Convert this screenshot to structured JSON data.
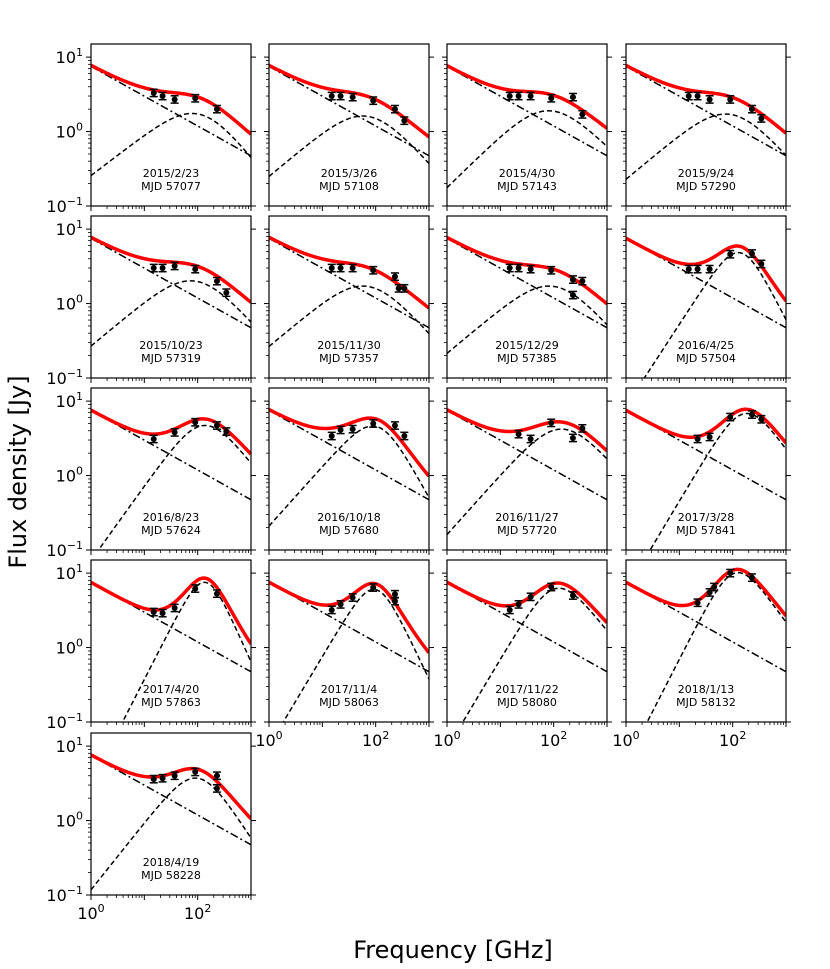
{
  "figure": {
    "xlabel": "Frequency [GHz]",
    "ylabel": "Flux density [Jy]"
  },
  "colors": {
    "model": "#ff0000",
    "component": "#000000",
    "points": "#000000"
  },
  "axis": {
    "xlim": [
      1,
      1000
    ],
    "ylim": [
      0.1,
      15
    ],
    "y_ticks": [
      {
        "value": 10,
        "base": "10",
        "exp": "1"
      },
      {
        "value": 1,
        "base": "10",
        "exp": "0"
      },
      {
        "value": 0.1,
        "base": "10",
        "exp": "−1"
      }
    ],
    "x_ticks": [
      {
        "value": 1,
        "base": "10",
        "exp": "0"
      },
      {
        "value": 100,
        "base": "10",
        "exp": "2"
      }
    ]
  },
  "chart_data": [
    {
      "type": "line",
      "date": "2015/2/23",
      "mjd": "MJD 57077",
      "model": {
        "A": 7.5,
        "alpha": -0.4,
        "S_peak": 1.7,
        "nu_peak": 110,
        "alpha_thick": 0.55,
        "alpha_thin": -0.9
      },
      "points": [
        {
          "x": 15,
          "y": 3.3
        },
        {
          "x": 22,
          "y": 3.0
        },
        {
          "x": 37,
          "y": 2.7
        },
        {
          "x": 90,
          "y": 2.8
        },
        {
          "x": 230,
          "y": 2.0
        }
      ]
    },
    {
      "type": "line",
      "date": "2015/3/26",
      "mjd": "MJD 57108",
      "model": {
        "A": 7.5,
        "alpha": -0.4,
        "S_peak": 1.6,
        "nu_peak": 70,
        "alpha_thick": 0.6,
        "alpha_thin": -0.8
      },
      "points": [
        {
          "x": 15,
          "y": 3.0
        },
        {
          "x": 22,
          "y": 3.0
        },
        {
          "x": 37,
          "y": 2.9
        },
        {
          "x": 90,
          "y": 2.6
        },
        {
          "x": 230,
          "y": 2.0
        },
        {
          "x": 345,
          "y": 1.4
        }
      ]
    },
    {
      "type": "line",
      "date": "2015/4/30",
      "mjd": "MJD 57143",
      "model": {
        "A": 7.5,
        "alpha": -0.4,
        "S_peak": 1.9,
        "nu_peak": 80,
        "alpha_thick": 0.7,
        "alpha_thin": -0.7
      },
      "points": [
        {
          "x": 15,
          "y": 3.0
        },
        {
          "x": 22,
          "y": 3.0
        },
        {
          "x": 37,
          "y": 3.0
        },
        {
          "x": 90,
          "y": 2.8
        },
        {
          "x": 230,
          "y": 2.9
        },
        {
          "x": 345,
          "y": 1.7
        }
      ]
    },
    {
      "type": "line",
      "date": "2015/9/24",
      "mjd": "MJD 57290",
      "model": {
        "A": 7.5,
        "alpha": -0.4,
        "S_peak": 1.7,
        "nu_peak": 90,
        "alpha_thick": 0.6,
        "alpha_thin": -0.8
      },
      "points": [
        {
          "x": 15,
          "y": 3.0
        },
        {
          "x": 22,
          "y": 3.0
        },
        {
          "x": 37,
          "y": 2.7
        },
        {
          "x": 90,
          "y": 2.7
        },
        {
          "x": 230,
          "y": 2.0
        },
        {
          "x": 345,
          "y": 1.5
        }
      ]
    },
    {
      "type": "line",
      "date": "2015/10/23",
      "mjd": "MJD 57319",
      "model": {
        "A": 7.5,
        "alpha": -0.4,
        "S_peak": 2.0,
        "nu_peak": 90,
        "alpha_thick": 0.6,
        "alpha_thin": -0.8
      },
      "points": [
        {
          "x": 15,
          "y": 3.0
        },
        {
          "x": 22,
          "y": 3.0
        },
        {
          "x": 37,
          "y": 3.2
        },
        {
          "x": 90,
          "y": 2.9
        },
        {
          "x": 230,
          "y": 2.0
        },
        {
          "x": 345,
          "y": 1.4
        }
      ]
    },
    {
      "type": "line",
      "date": "2015/11/30",
      "mjd": "MJD 57357",
      "model": {
        "A": 7.5,
        "alpha": -0.4,
        "S_peak": 1.7,
        "nu_peak": 70,
        "alpha_thick": 0.6,
        "alpha_thin": -0.8
      },
      "points": [
        {
          "x": 15,
          "y": 3.0
        },
        {
          "x": 22,
          "y": 3.0
        },
        {
          "x": 37,
          "y": 3.0
        },
        {
          "x": 90,
          "y": 2.8
        },
        {
          "x": 230,
          "y": 2.3
        },
        {
          "x": 270,
          "y": 1.6
        },
        {
          "x": 345,
          "y": 1.6
        }
      ]
    },
    {
      "type": "line",
      "date": "2015/12/29",
      "mjd": "MJD 57385",
      "model": {
        "A": 7.5,
        "alpha": -0.4,
        "S_peak": 1.7,
        "nu_peak": 100,
        "alpha_thick": 0.6,
        "alpha_thin": -0.8
      },
      "points": [
        {
          "x": 15,
          "y": 3.0
        },
        {
          "x": 22,
          "y": 3.0
        },
        {
          "x": 37,
          "y": 2.9
        },
        {
          "x": 90,
          "y": 2.8
        },
        {
          "x": 230,
          "y": 2.1
        },
        {
          "x": 230,
          "y": 1.3
        },
        {
          "x": 345,
          "y": 2.0
        }
      ]
    },
    {
      "type": "line",
      "date": "2016/4/25",
      "mjd": "MJD 57504",
      "model": {
        "A": 7.5,
        "alpha": -0.4,
        "S_peak": 4.8,
        "nu_peak": 140,
        "alpha_thick": 1.1,
        "alpha_thin": -1.4
      },
      "points": [
        {
          "x": 15,
          "y": 2.9
        },
        {
          "x": 22,
          "y": 2.9
        },
        {
          "x": 37,
          "y": 2.9
        },
        {
          "x": 90,
          "y": 4.6
        },
        {
          "x": 230,
          "y": 4.7
        },
        {
          "x": 345,
          "y": 3.4
        }
      ]
    },
    {
      "type": "line",
      "date": "2016/8/23",
      "mjd": "MJD 57624",
      "model": {
        "A": 7.5,
        "alpha": -0.4,
        "S_peak": 4.7,
        "nu_peak": 130,
        "alpha_thick": 1.0,
        "alpha_thin": -0.9
      },
      "points": [
        {
          "x": 15,
          "y": 3.1
        },
        {
          "x": 37,
          "y": 3.8
        },
        {
          "x": 90,
          "y": 5.2
        },
        {
          "x": 230,
          "y": 4.7
        },
        {
          "x": 345,
          "y": 3.9
        }
      ]
    },
    {
      "type": "line",
      "date": "2016/10/18",
      "mjd": "MJD 57680",
      "model": {
        "A": 7.5,
        "alpha": -0.4,
        "S_peak": 4.5,
        "nu_peak": 110,
        "alpha_thick": 0.8,
        "alpha_thin": -1.3
      },
      "points": [
        {
          "x": 15,
          "y": 3.4
        },
        {
          "x": 22,
          "y": 4.1
        },
        {
          "x": 37,
          "y": 4.2
        },
        {
          "x": 90,
          "y": 5.0
        },
        {
          "x": 230,
          "y": 4.7
        },
        {
          "x": 345,
          "y": 3.4
        }
      ]
    },
    {
      "type": "line",
      "date": "2016/11/27",
      "mjd": "MJD 57720",
      "model": {
        "A": 7.5,
        "alpha": -0.4,
        "S_peak": 4.2,
        "nu_peak": 140,
        "alpha_thick": 0.8,
        "alpha_thin": -0.8
      },
      "points": [
        {
          "x": 22,
          "y": 3.6
        },
        {
          "x": 37,
          "y": 3.1
        },
        {
          "x": 90,
          "y": 5.1
        },
        {
          "x": 230,
          "y": 3.2
        },
        {
          "x": 345,
          "y": 4.3
        }
      ]
    },
    {
      "type": "line",
      "date": "2017/3/28",
      "mjd": "MJD 57841",
      "model": {
        "A": 7.5,
        "alpha": -0.4,
        "S_peak": 6.8,
        "nu_peak": 170,
        "alpha_thick": 1.2,
        "alpha_thin": -1.0
      },
      "points": [
        {
          "x": 22,
          "y": 3.1
        },
        {
          "x": 37,
          "y": 3.3
        },
        {
          "x": 90,
          "y": 6.1
        },
        {
          "x": 230,
          "y": 6.6
        },
        {
          "x": 345,
          "y": 5.7
        }
      ]
    },
    {
      "type": "line",
      "date": "2017/4/20",
      "mjd": "MJD 57863",
      "model": {
        "A": 7.5,
        "alpha": -0.4,
        "S_peak": 7.5,
        "nu_peak": 140,
        "alpha_thick": 1.4,
        "alpha_thin": -1.6
      },
      "points": [
        {
          "x": 15,
          "y": 3.0
        },
        {
          "x": 22,
          "y": 2.9
        },
        {
          "x": 37,
          "y": 3.4
        },
        {
          "x": 90,
          "y": 6.2
        },
        {
          "x": 230,
          "y": 5.3
        }
      ]
    },
    {
      "type": "line",
      "date": "2017/11/4",
      "mjd": "MJD 58063",
      "model": {
        "A": 7.5,
        "alpha": -0.4,
        "S_peak": 6.0,
        "nu_peak": 100,
        "alpha_thick": 1.2,
        "alpha_thin": -1.5
      },
      "points": [
        {
          "x": 15,
          "y": 3.2
        },
        {
          "x": 22,
          "y": 3.8
        },
        {
          "x": 37,
          "y": 4.7
        },
        {
          "x": 90,
          "y": 6.4
        },
        {
          "x": 230,
          "y": 5.2
        },
        {
          "x": 230,
          "y": 4.2
        }
      ]
    },
    {
      "type": "line",
      "date": "2017/11/22",
      "mjd": "MJD 58080",
      "model": {
        "A": 7.5,
        "alpha": -0.4,
        "S_peak": 6.2,
        "nu_peak": 110,
        "alpha_thick": 1.2,
        "alpha_thin": -0.9
      },
      "points": [
        {
          "x": 15,
          "y": 3.2
        },
        {
          "x": 22,
          "y": 3.8
        },
        {
          "x": 37,
          "y": 4.8
        },
        {
          "x": 90,
          "y": 6.5
        },
        {
          "x": 230,
          "y": 5.0
        }
      ]
    },
    {
      "type": "line",
      "date": "2018/1/13",
      "mjd": "MJD 58132",
      "model": {
        "A": 7.5,
        "alpha": -0.4,
        "S_peak": 10.0,
        "nu_peak": 110,
        "alpha_thick": 1.4,
        "alpha_thin": -1.0
      },
      "points": [
        {
          "x": 22,
          "y": 4.0
        },
        {
          "x": 37,
          "y": 5.5
        },
        {
          "x": 45,
          "y": 6.5
        },
        {
          "x": 90,
          "y": 10.0
        },
        {
          "x": 230,
          "y": 8.7
        }
      ]
    },
    {
      "type": "line",
      "date": "2018/4/19",
      "mjd": "MJD 58228",
      "model": {
        "A": 7.5,
        "alpha": -0.4,
        "S_peak": 3.7,
        "nu_peak": 100,
        "alpha_thick": 0.9,
        "alpha_thin": -1.1
      },
      "points": [
        {
          "x": 15,
          "y": 3.6
        },
        {
          "x": 22,
          "y": 3.7
        },
        {
          "x": 37,
          "y": 4.0
        },
        {
          "x": 90,
          "y": 4.5
        },
        {
          "x": 230,
          "y": 4.0
        },
        {
          "x": 230,
          "y": 2.7
        }
      ]
    }
  ]
}
